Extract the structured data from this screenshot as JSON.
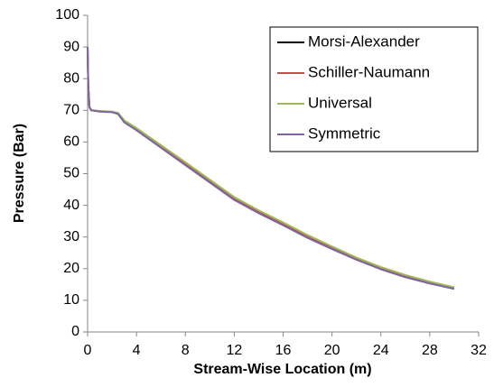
{
  "chart_data": {
    "type": "line",
    "x_label": "Stream-Wise Location (m)",
    "y_label": "Pressure (Bar)",
    "x": [
      0,
      0.05,
      0.15,
      0.3,
      1,
      2,
      2.5,
      3,
      4,
      6,
      8,
      10,
      12,
      14,
      16,
      18,
      20,
      22,
      24,
      26,
      28,
      30
    ],
    "series": [
      {
        "name": "Morsi-Alexander",
        "color": "#000000",
        "values": [
          90,
          78,
          71,
          70,
          69.7,
          69.5,
          69,
          66.5,
          64,
          58.5,
          53,
          47.5,
          42,
          37.8,
          34,
          30,
          26.5,
          23,
          20,
          17.5,
          15.5,
          13.8
        ]
      },
      {
        "name": "Schiller-Naumann",
        "color": "#c0504d",
        "values": [
          90,
          78,
          71,
          70,
          69.7,
          69.5,
          69,
          66.5,
          64,
          58.6,
          53.1,
          47.6,
          42.1,
          37.9,
          34.1,
          30.1,
          26.6,
          23.1,
          20.1,
          17.6,
          15.6,
          13.9
        ]
      },
      {
        "name": "Universal",
        "color": "#9bbb59",
        "values": [
          90,
          78,
          71,
          70,
          69.8,
          69.6,
          69.2,
          66.8,
          64.4,
          59,
          53.6,
          48.1,
          42.6,
          38.4,
          34.6,
          30.6,
          27,
          23.5,
          20.5,
          18,
          15.9,
          14.1
        ]
      },
      {
        "name": "Symmetric",
        "color": "#8064a2",
        "values": [
          90,
          78,
          71,
          70,
          69.6,
          69.4,
          68.8,
          66.2,
          63.7,
          58.2,
          52.7,
          47.2,
          41.7,
          37.5,
          33.7,
          29.7,
          26.2,
          22.8,
          19.8,
          17.3,
          15.3,
          13.6
        ]
      }
    ],
    "xlim": [
      0,
      32
    ],
    "xticks": [
      0,
      4,
      8,
      12,
      16,
      20,
      24,
      28,
      32
    ],
    "ylim": [
      0,
      100
    ],
    "yticks": [
      0,
      10,
      20,
      30,
      40,
      50,
      60,
      70,
      80,
      90,
      100
    ],
    "grid": false,
    "legend": "upper-right"
  }
}
